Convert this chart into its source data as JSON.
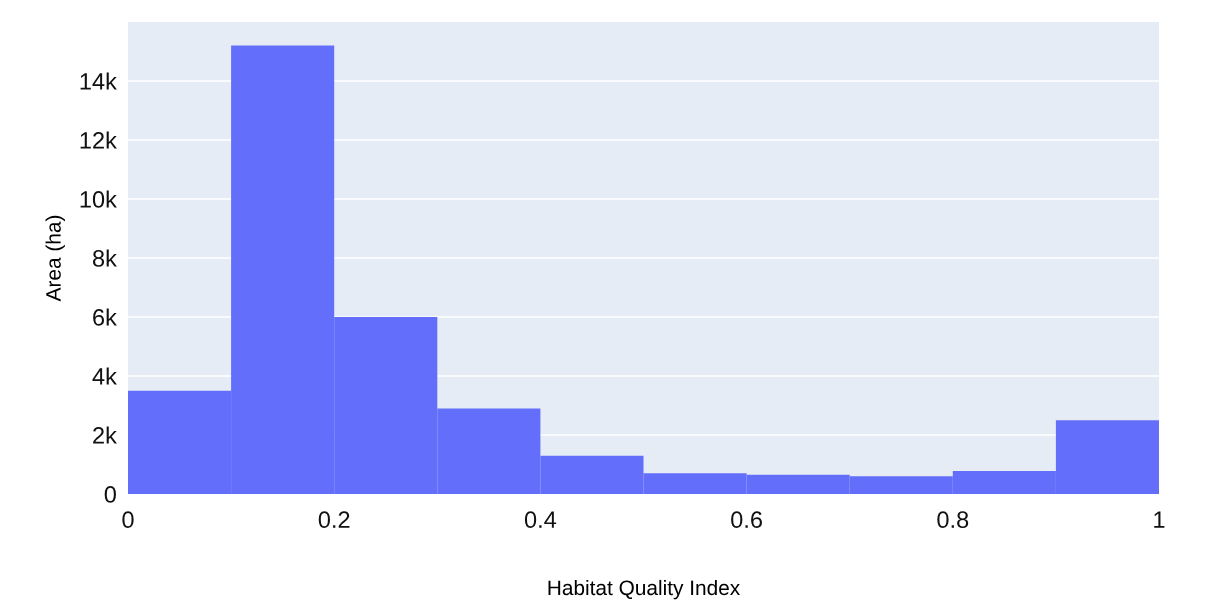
{
  "chart_data": {
    "type": "histogram",
    "xlabel": "Habitat Quality Index",
    "ylabel": "Area (ha)",
    "bins": [
      0,
      0.1,
      0.2,
      0.3,
      0.4,
      0.5,
      0.6,
      0.7,
      0.8,
      0.9,
      1
    ],
    "values": [
      3500,
      15200,
      6000,
      2900,
      1300,
      700,
      650,
      600,
      780,
      2500
    ],
    "color": "#636efa",
    "xlim": [
      0,
      1
    ],
    "xticks": [
      0,
      0.2,
      0.4,
      0.6,
      0.8,
      1
    ],
    "ylim": [
      0,
      16000
    ],
    "yticks": [
      0,
      {
        "value": 2000,
        "label": "2k"
      },
      {
        "value": 4000,
        "label": "4k"
      },
      {
        "value": 6000,
        "label": "6k"
      },
      {
        "value": 8000,
        "label": "8k"
      },
      {
        "value": 10000,
        "label": "10k"
      },
      {
        "value": 12000,
        "label": "12k"
      },
      {
        "value": 14000,
        "label": "14k"
      }
    ],
    "grid": "y"
  }
}
